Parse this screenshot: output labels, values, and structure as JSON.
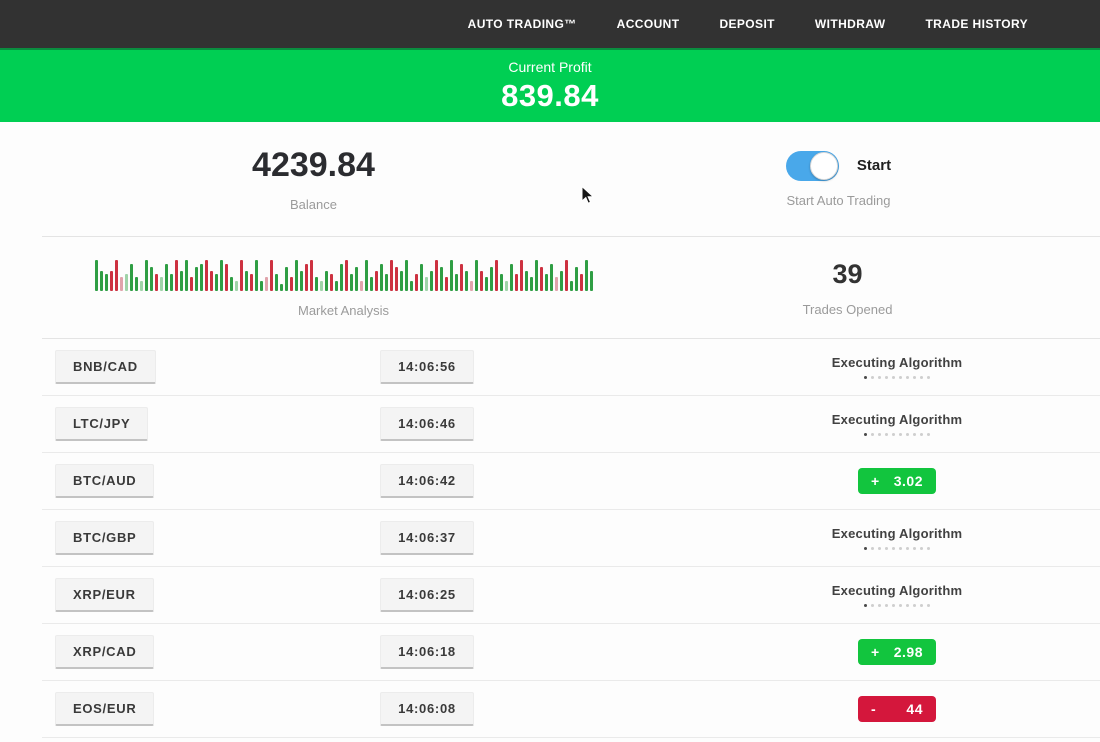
{
  "navbar": {
    "items": [
      "AUTO TRADING™",
      "ACCOUNT",
      "DEPOSIT",
      "WITHDRAW",
      "TRADE HISTORY"
    ]
  },
  "banner": {
    "title": "Current Profit",
    "value": "839.84"
  },
  "stats": {
    "balance": {
      "value": "4239.84",
      "label": "Balance"
    },
    "auto_trading": {
      "toggle_label": "Start",
      "label": "Start Auto Trading",
      "state": "on"
    },
    "market_analysis": {
      "label": "Market Analysis"
    },
    "trades_opened": {
      "value": "39",
      "label": "Trades Opened"
    }
  },
  "chart_data": {
    "type": "bar",
    "title": "Market Analysis",
    "note": "decorative market-analysis sparkline; codes are color (g=green, r=red, G=faded green, R=faded red) + height in tenths of 34px",
    "bars": [
      "g9",
      "g6",
      "g5",
      "r6",
      "r9",
      "R4",
      "G5",
      "g8",
      "g4",
      "G3",
      "g9",
      "g7",
      "r5",
      "G4",
      "g8",
      "g5",
      "r9",
      "g6",
      "g9",
      "r4",
      "g7",
      "g8",
      "r9",
      "r6",
      "g5",
      "g9",
      "r8",
      "g4",
      "G3",
      "r9",
      "g6",
      "r5",
      "g9",
      "g3",
      "R4",
      "r9",
      "g5",
      "g2",
      "g7",
      "r4",
      "g9",
      "g6",
      "r8",
      "r9",
      "g4",
      "G3",
      "g6",
      "r5",
      "g3",
      "g8",
      "r9",
      "g5",
      "g7",
      "R3",
      "g9",
      "g4",
      "r6",
      "g8",
      "g5",
      "r9",
      "r7",
      "g6",
      "g9",
      "g3",
      "r5",
      "g8",
      "G4",
      "g6",
      "r9",
      "g7",
      "r4",
      "g9",
      "g5",
      "r8",
      "g6",
      "R3",
      "g9",
      "r6",
      "g4",
      "g7",
      "r9",
      "g5",
      "G3",
      "g8",
      "r5",
      "r9",
      "g6",
      "g4",
      "g9",
      "r7",
      "g5",
      "g8",
      "R4",
      "g6",
      "r9",
      "g3",
      "g7",
      "r5",
      "g9",
      "g6"
    ],
    "colors": {
      "g": "#2f9e44",
      "r": "#cd3140",
      "G": "#9fd3a8",
      "R": "#e0a3ab"
    }
  },
  "trades": [
    {
      "pair": "BNB/CAD",
      "time": "14:06:56",
      "status": "executing",
      "status_label": "Executing Algorithm"
    },
    {
      "pair": "LTC/JPY",
      "time": "14:06:46",
      "status": "executing",
      "status_label": "Executing Algorithm"
    },
    {
      "pair": "BTC/AUD",
      "time": "14:06:42",
      "status": "profit",
      "sign": "+",
      "value": "3.02"
    },
    {
      "pair": "BTC/GBP",
      "time": "14:06:37",
      "status": "executing",
      "status_label": "Executing Algorithm"
    },
    {
      "pair": "XRP/EUR",
      "time": "14:06:25",
      "status": "executing",
      "status_label": "Executing Algorithm"
    },
    {
      "pair": "XRP/CAD",
      "time": "14:06:18",
      "status": "profit",
      "sign": "+",
      "value": "2.98"
    },
    {
      "pair": "EOS/EUR",
      "time": "14:06:08",
      "status": "loss",
      "sign": "-",
      "value": "44"
    }
  ],
  "colors": {
    "navbar_bg": "#323232",
    "banner_bg": "#00cf53",
    "profit_badge": "#12c53e",
    "loss_badge": "#d4173c",
    "toggle_on": "#49a8ea"
  }
}
